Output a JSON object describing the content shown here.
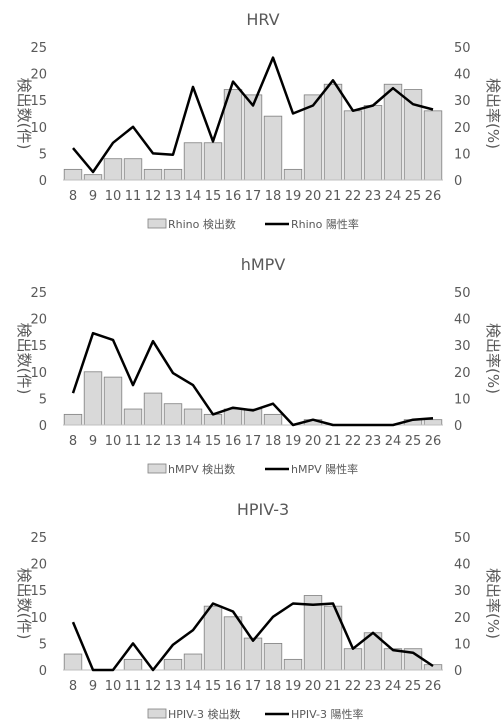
{
  "chart_data": [
    {
      "type": "bar",
      "title": "HRV",
      "categories": [
        "8",
        "9",
        "10",
        "11",
        "12",
        "13",
        "14",
        "15",
        "16",
        "17",
        "18",
        "19",
        "20",
        "21",
        "22",
        "23",
        "24",
        "25",
        "26"
      ],
      "series": [
        {
          "name": "Rhino 検出数",
          "kind": "bar",
          "axis": "left",
          "values": [
            2,
            1,
            4,
            4,
            2,
            2,
            7,
            7,
            17,
            16,
            12,
            2,
            16,
            18,
            13,
            14,
            18,
            17,
            13
          ]
        },
        {
          "name": "Rhino 陽性率",
          "kind": "line",
          "axis": "right",
          "values": [
            12,
            3,
            14,
            20,
            10,
            9.5,
            35,
            14.5,
            37,
            28,
            46,
            25,
            28,
            37.5,
            26,
            28,
            34.5,
            28.5,
            26.5
          ]
        }
      ],
      "ylabel": "検出数(件)",
      "y2label": "検出率(%)",
      "ylim": [
        0,
        25
      ],
      "y2lim": [
        0,
        50
      ],
      "yticks": [
        "0",
        "5",
        "10",
        "15",
        "20",
        "25"
      ],
      "y2ticks": [
        "0",
        "10",
        "20",
        "30",
        "40",
        "50"
      ],
      "legend": "bottom",
      "grid": false
    },
    {
      "type": "bar",
      "title": "hMPV",
      "categories": [
        "8",
        "9",
        "10",
        "11",
        "12",
        "13",
        "14",
        "15",
        "16",
        "17",
        "18",
        "19",
        "20",
        "21",
        "22",
        "23",
        "24",
        "25",
        "26"
      ],
      "series": [
        {
          "name": "hMPV 検出数",
          "kind": "bar",
          "axis": "left",
          "values": [
            2,
            10,
            9,
            3,
            6,
            4,
            3,
            2,
            3,
            3,
            2,
            0,
            1,
            0,
            0,
            0,
            0,
            1,
            1
          ]
        },
        {
          "name": "hMPV 陽性率",
          "kind": "line",
          "axis": "right",
          "values": [
            12,
            34.5,
            32,
            15,
            31.5,
            19.5,
            15,
            4,
            6.5,
            5.5,
            8,
            0,
            2,
            0,
            0,
            0,
            0,
            2,
            2.5
          ]
        }
      ],
      "ylabel": "検出数(件)",
      "y2label": "検出率(%)",
      "ylim": [
        0,
        25
      ],
      "y2lim": [
        0,
        50
      ],
      "yticks": [
        "0",
        "5",
        "10",
        "15",
        "20",
        "25"
      ],
      "y2ticks": [
        "0",
        "10",
        "20",
        "30",
        "40",
        "50"
      ],
      "legend": "bottom",
      "grid": false
    },
    {
      "type": "bar",
      "title": "HPIV-3",
      "categories": [
        "8",
        "9",
        "10",
        "11",
        "12",
        "13",
        "14",
        "15",
        "16",
        "17",
        "18",
        "19",
        "20",
        "21",
        "22",
        "23",
        "24",
        "25",
        "26"
      ],
      "series": [
        {
          "name": "HPIV-3 検出数",
          "kind": "bar",
          "axis": "left",
          "values": [
            3,
            0,
            0,
            2,
            0,
            2,
            3,
            12,
            10,
            6,
            5,
            2,
            14,
            12,
            4,
            7,
            4,
            4,
            1
          ]
        },
        {
          "name": "HPIV-3 陽性率",
          "kind": "line",
          "axis": "right",
          "values": [
            18,
            0,
            0,
            10,
            0,
            9.5,
            15,
            25,
            22,
            11,
            20,
            25,
            24.5,
            25,
            8,
            14,
            7.5,
            6.5,
            1.5
          ]
        }
      ],
      "ylabel": "検出数(件)",
      "y2label": "検出率(%)",
      "ylim": [
        0,
        25
      ],
      "y2lim": [
        0,
        50
      ],
      "yticks": [
        "0",
        "5",
        "10",
        "15",
        "20",
        "25"
      ],
      "y2ticks": [
        "0",
        "10",
        "20",
        "30",
        "40",
        "50"
      ],
      "legend": "bottom",
      "grid": false
    }
  ],
  "colors": {
    "bar_fill": "#d9d9d9",
    "bar_stroke": "#7f7f7f",
    "line": "#000000",
    "axis": "#bfbfbf",
    "text": "#595959"
  }
}
